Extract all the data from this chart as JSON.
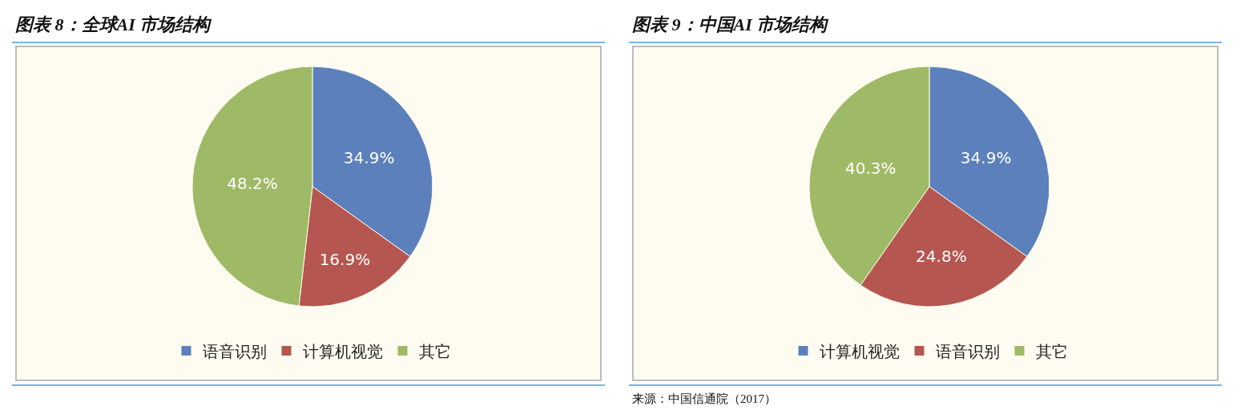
{
  "chart_data": [
    {
      "type": "pie",
      "title": "图表 8：全球AI 市场结构",
      "categories": [
        "语音识别",
        "计算机视觉",
        "其它"
      ],
      "values": [
        34.9,
        16.9,
        48.2
      ],
      "colors": [
        "#5b80bb",
        "#b65650",
        "#9fba66"
      ],
      "value_labels": [
        "34.9%",
        "16.9%",
        "48.2%"
      ],
      "legend": "bottom"
    },
    {
      "type": "pie",
      "title": "图表 9：中国AI 市场结构",
      "categories": [
        "计算机视觉",
        "语音识别",
        "其它"
      ],
      "values": [
        34.9,
        24.8,
        40.3
      ],
      "colors": [
        "#5b80bb",
        "#b65650",
        "#9fba66"
      ],
      "value_labels": [
        "34.9%",
        "24.8%",
        "40.3%"
      ],
      "legend": "bottom",
      "annotations": [
        "来源：中国信通院（2017）"
      ]
    }
  ]
}
